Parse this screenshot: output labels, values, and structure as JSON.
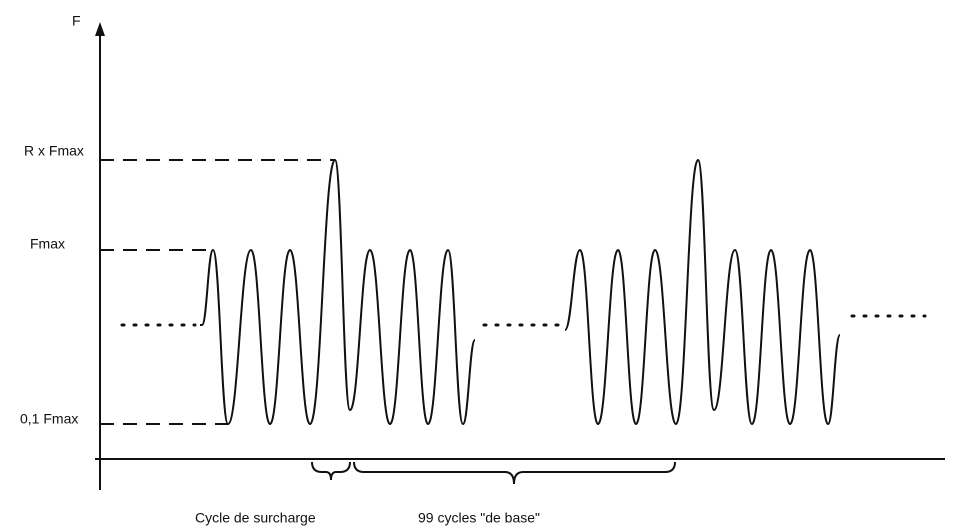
{
  "axis": {
    "label": "F"
  },
  "levels": [
    "R x Fmax",
    "Fmax",
    "0,1 Fmax"
  ],
  "annotations": [
    "Cycle de surcharge",
    "99 cycles \"de base\""
  ]
}
